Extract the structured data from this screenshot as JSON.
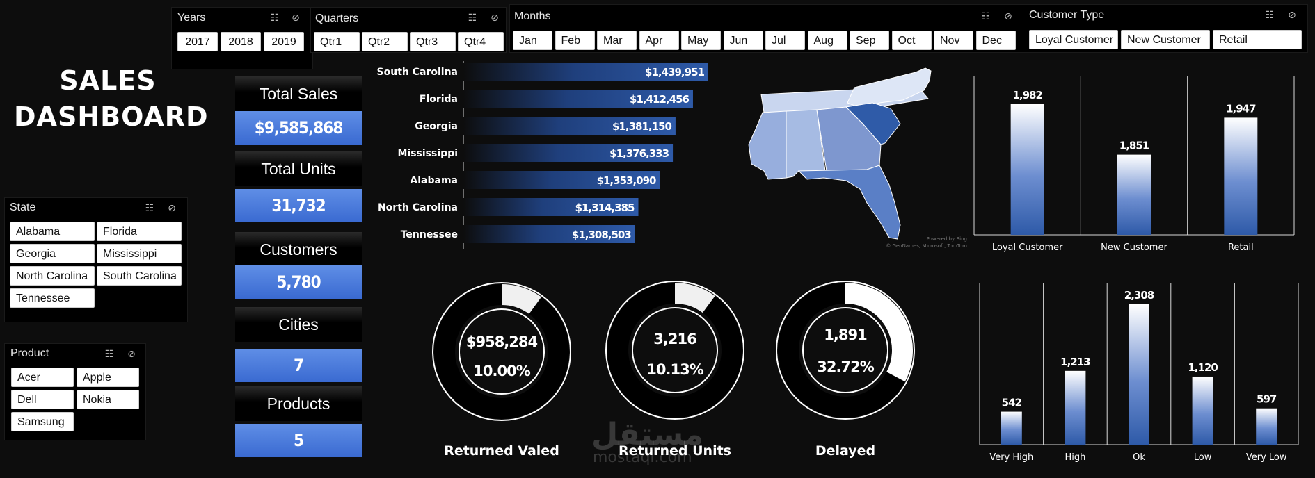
{
  "title_line1": "SALES",
  "title_line2": "DASHBOARD",
  "slicers": {
    "years": {
      "title": "Years",
      "items": [
        "2017",
        "2018",
        "2019"
      ]
    },
    "quarters": {
      "title": "Quarters",
      "items": [
        "Qtr1",
        "Qtr2",
        "Qtr3",
        "Qtr4"
      ]
    },
    "months": {
      "title": "Months",
      "items": [
        "Jan",
        "Feb",
        "Mar",
        "Apr",
        "May",
        "Jun",
        "Jul",
        "Aug",
        "Sep",
        "Oct",
        "Nov",
        "Dec"
      ]
    },
    "customer_type": {
      "title": "Customer Type",
      "items": [
        "Loyal Customer",
        "New Customer",
        "Retail"
      ]
    },
    "state": {
      "title": "State",
      "items": [
        "Alabama",
        "Florida",
        "Georgia",
        "Mississippi",
        "North Carolina",
        "South Carolina",
        "Tennessee"
      ]
    },
    "product": {
      "title": "Product",
      "items": [
        "Acer",
        "Apple",
        "Dell",
        "Nokia",
        "Samsung"
      ]
    }
  },
  "kpis": {
    "total_sales": {
      "label": "Total Sales",
      "value": "$9,585,868"
    },
    "total_units": {
      "label": "Total Units",
      "value": "31,732"
    },
    "customers": {
      "label": "Customers",
      "value": "5,780"
    },
    "cities": {
      "label": "Cities",
      "value": "7"
    },
    "products": {
      "label": "Products",
      "value": "5"
    }
  },
  "map_attribution": {
    "line1": "Powered by Bing",
    "line2": "© GeoNames, Microsoft, TomTom"
  },
  "watermark": {
    "arabic": "مستقل",
    "latin": "mostaql.com"
  },
  "colors": {
    "bar_blue": "#2e5aa8",
    "accent_blue": "#3a6ad1",
    "background": "#0d0d0d"
  },
  "chart_data": [
    {
      "id": "sales_by_state",
      "type": "bar",
      "orientation": "horizontal",
      "categories": [
        "South Carolina",
        "Florida",
        "Georgia",
        "Mississippi",
        "Alabama",
        "North Carolina",
        "Tennessee"
      ],
      "values": [
        1439951,
        1412456,
        1381150,
        1376333,
        1353090,
        1314385,
        1308503
      ],
      "labels": [
        "$1,439,951",
        "$1,412,456",
        "$1,381,150",
        "$1,376,333",
        "$1,353,090",
        "$1,314,385",
        "$1,308,503"
      ],
      "xlim": [
        1000000,
        1450000
      ]
    },
    {
      "id": "by_customer_type",
      "type": "bar",
      "categories": [
        "Loyal Customer",
        "New Customer",
        "Retail"
      ],
      "values": [
        1982,
        1851,
        1947
      ],
      "labels": [
        "1,982",
        "1,851",
        "1,947"
      ],
      "ylim": [
        1800,
        2000
      ]
    },
    {
      "id": "by_satisfaction",
      "type": "bar",
      "categories": [
        "Very High",
        "High",
        "Ok",
        "Low",
        "Very Low"
      ],
      "values": [
        542,
        1213,
        2308,
        1120,
        597
      ],
      "labels": [
        "542",
        "1,213",
        "2,308",
        "1,120",
        "597"
      ],
      "ylim": [
        0,
        2308
      ]
    },
    {
      "id": "returned_valued",
      "type": "pie",
      "title": "Returned Valed",
      "value_label": "$958,284",
      "percent_label": "10.00%",
      "percent": 10.0
    },
    {
      "id": "returned_units",
      "type": "pie",
      "title": "Returned Units",
      "value_label": "3,216",
      "percent_label": "10.13%",
      "percent": 10.13
    },
    {
      "id": "delayed",
      "type": "pie",
      "title": "Delayed",
      "value_label": "1,891",
      "percent_label": "32.72%",
      "percent": 32.72
    }
  ]
}
